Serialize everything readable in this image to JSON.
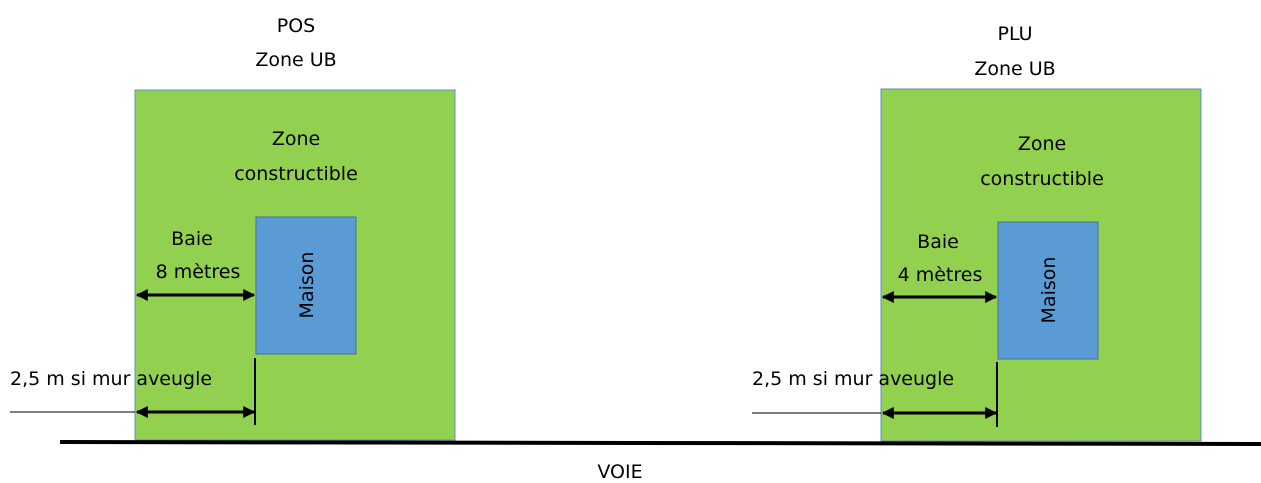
{
  "colors": {
    "zone_fill": "#92d050",
    "zone_stroke": "#5b8fc8",
    "house_fill": "#5b9bd5",
    "house_stroke": "#41719c",
    "line": "#000000"
  },
  "left": {
    "heading1": "POS",
    "heading2": "Zone UB",
    "zone_line1": "Zone",
    "zone_line2": "constructible",
    "baie_line1": "Baie",
    "baie_line2": "8 mètres",
    "house": "Maison",
    "mur": "2,5 m si mur aveugle"
  },
  "right": {
    "heading1": "PLU",
    "heading2": "Zone UB",
    "zone_line1": "Zone",
    "zone_line2": "constructible",
    "baie_line1": "Baie",
    "baie_line2": "4 mètres",
    "house": "Maison",
    "mur": "2,5 m si mur aveugle"
  },
  "road": "VOIE"
}
